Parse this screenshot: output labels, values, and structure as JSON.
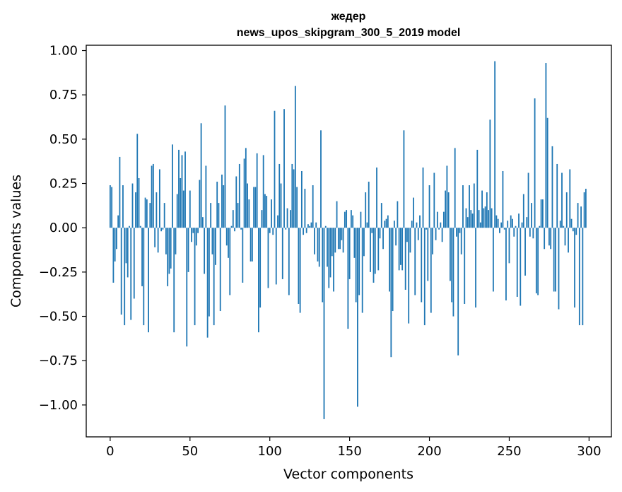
{
  "chart_data": {
    "type": "bar",
    "title": "жедер",
    "subtitle": "news_upos_skipgram_300_5_2019 model",
    "xlabel": "Vector components",
    "ylabel": "Components values",
    "xlim": [
      -15,
      314
    ],
    "ylim": [
      -1.18,
      1.03
    ],
    "xticks": [
      0,
      50,
      100,
      150,
      200,
      250,
      300
    ],
    "yticks": [
      -1.0,
      -0.75,
      -0.5,
      -0.25,
      0.0,
      0.25,
      0.5,
      0.75,
      1.0
    ],
    "xtick_labels": [
      "0",
      "50",
      "100",
      "150",
      "200",
      "250",
      "300"
    ],
    "ytick_labels": [
      "−1.00",
      "−0.75",
      "−0.50",
      "−0.25",
      "0.00",
      "0.25",
      "0.50",
      "0.75",
      "1.00"
    ],
    "bar_color": "#1f77b4",
    "x_start": 0,
    "values": [
      0.24,
      0.23,
      -0.31,
      -0.19,
      -0.12,
      0.07,
      0.4,
      -0.49,
      0.24,
      -0.55,
      -0.2,
      -0.28,
      0.01,
      -0.52,
      0.25,
      -0.4,
      0.2,
      0.53,
      0.28,
      0.01,
      -0.33,
      -0.55,
      0.17,
      0.16,
      -0.59,
      0.14,
      0.35,
      0.36,
      -0.11,
      0.2,
      -0.14,
      0.33,
      -0.02,
      -0.01,
      0.14,
      -0.15,
      -0.33,
      -0.26,
      -0.23,
      0.47,
      -0.59,
      -0.15,
      0.19,
      0.44,
      0.28,
      0.41,
      0.21,
      0.43,
      -0.67,
      -0.25,
      0.21,
      -0.08,
      -0.03,
      -0.55,
      -0.1,
      -0.03,
      0.27,
      0.59,
      0.06,
      -0.26,
      0.35,
      -0.62,
      -0.5,
      0.14,
      -0.15,
      -0.55,
      -0.21,
      0.26,
      0.14,
      -0.47,
      0.3,
      0.24,
      0.69,
      -0.1,
      -0.17,
      -0.38,
      0.01,
      0.1,
      -0.02,
      0.29,
      0.14,
      0.36,
      -0.01,
      -0.31,
      0.39,
      0.45,
      0.25,
      0.16,
      -0.19,
      -0.19,
      0.23,
      0.23,
      0.42,
      -0.59,
      -0.45,
      0.1,
      0.41,
      0.19,
      0.18,
      -0.34,
      -0.03,
      0.16,
      -0.04,
      0.66,
      -0.32,
      0.07,
      0.36,
      0.25,
      -0.29,
      0.67,
      -0.01,
      0.11,
      -0.38,
      0.1,
      0.36,
      0.33,
      0.8,
      0.23,
      -0.43,
      -0.48,
      0.32,
      -0.04,
      0.22,
      -0.03,
      0.02,
      0.01,
      0.03,
      0.24,
      -0.15,
      0.03,
      -0.19,
      -0.22,
      0.55,
      -0.42,
      -1.08,
      0.01,
      -0.22,
      -0.34,
      -0.28,
      -0.16,
      -0.36,
      -0.14,
      0.15,
      -0.12,
      -0.12,
      -0.07,
      -0.14,
      0.09,
      0.1,
      -0.57,
      -0.29,
      0.1,
      0.07,
      -0.17,
      -0.42,
      -1.01,
      -0.38,
      0.09,
      -0.48,
      -0.16,
      0.2,
      0.03,
      0.26,
      -0.25,
      -0.03,
      -0.31,
      -0.26,
      0.34,
      -0.24,
      -0.06,
      0.14,
      -0.12,
      0.04,
      0.05,
      0.07,
      -0.36,
      -0.73,
      -0.47,
      0.04,
      -0.1,
      0.15,
      -0.24,
      -0.21,
      -0.24,
      0.55,
      -0.35,
      -0.08,
      -0.54,
      -0.14,
      0.04,
      0.17,
      -0.38,
      0.03,
      -0.07,
      0.07,
      -0.42,
      0.34,
      -0.55,
      -0.01,
      -0.3,
      0.24,
      -0.48,
      -0.15,
      0.31,
      -0.07,
      0.09,
      -0.01,
      0.03,
      -0.08,
      0.09,
      0.21,
      0.35,
      0.2,
      -0.3,
      -0.42,
      -0.5,
      0.45,
      -0.05,
      -0.72,
      -0.03,
      -0.15,
      0.24,
      -0.43,
      0.11,
      0.06,
      0.24,
      0.1,
      0.08,
      0.25,
      -0.45,
      0.44,
      0.1,
      0.03,
      0.21,
      0.11,
      0.12,
      0.2,
      0.1,
      0.61,
      0.11,
      -0.36,
      0.94,
      0.07,
      0.05,
      -0.03,
      0.03,
      0.32,
      -0.01,
      -0.41,
      0.04,
      -0.2,
      0.07,
      0.05,
      -0.05,
      0.01,
      -0.39,
      0.08,
      -0.44,
      0.03,
      0.19,
      -0.27,
      0.06,
      0.31,
      -0.05,
      0.14,
      -0.06,
      0.73,
      -0.37,
      -0.38,
      0.01,
      0.16,
      0.16,
      -0.12,
      0.93,
      0.62,
      -0.1,
      -0.12,
      0.46,
      -0.36,
      -0.36,
      0.36,
      -0.46,
      0.04,
      0.31,
      0.01,
      -0.1,
      0.2,
      -0.14,
      0.33,
      0.05,
      -0.02,
      -0.45,
      -0.04,
      0.14,
      -0.55,
      0.12,
      -0.55,
      0.2,
      0.22
    ]
  }
}
